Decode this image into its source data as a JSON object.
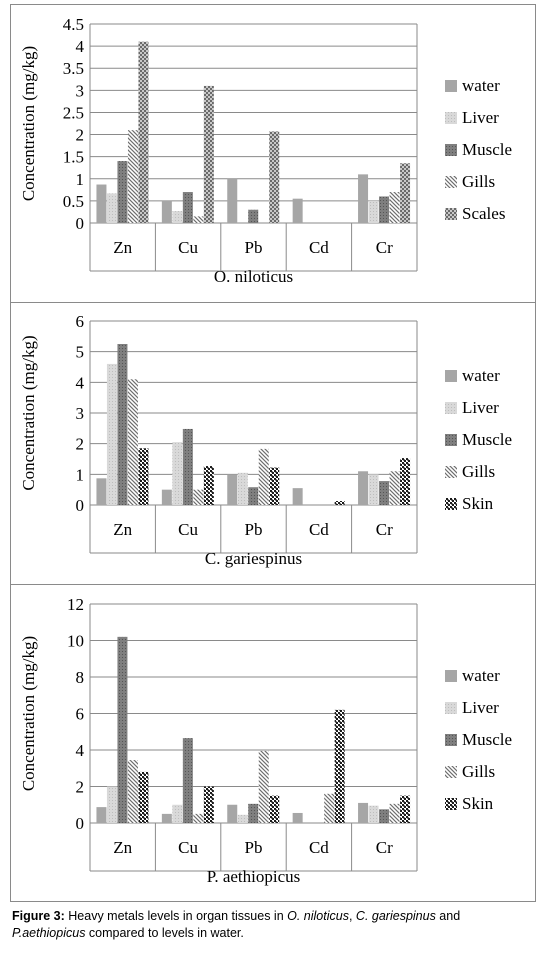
{
  "figure_caption": {
    "label": "Figure 3:",
    "text_1": " Heavy metals levels in organ tissues in ",
    "species_1": "O. niloticus",
    "text_2": ", ",
    "species_2": "C. gariespinus",
    "text_3": " and ",
    "species_3": "P.aethiopicus",
    "text_4": " compared to levels in water."
  },
  "colors": {
    "water": "#a6a6a6",
    "liver": "#d9d9d9",
    "muscle": "#7f7f7f",
    "gills": "#6e6e6e",
    "scales": "#8c8c8c",
    "skin": "#1a1a1a",
    "grid": "#8a8a8a"
  },
  "chart_data": [
    {
      "type": "bar",
      "title": "O. niloticus",
      "ylabel": "Concentration (mg/kg)",
      "categories": [
        "Zn",
        "Cu",
        "Pb",
        "Cd",
        "Cr"
      ],
      "ylim": [
        0,
        4.5
      ],
      "yticks": [
        0,
        0.5,
        1,
        1.5,
        2,
        2.5,
        3,
        3.5,
        4,
        4.5
      ],
      "ytick_labels": [
        "0",
        "0.5",
        "1",
        "1.5",
        "2",
        "2.5",
        "3",
        "3.5",
        "4",
        "4.5"
      ],
      "legend_position": "right",
      "series": [
        {
          "name": "water",
          "pattern": "solid-gray",
          "values": [
            0.87,
            0.5,
            1.0,
            0.55,
            1.1
          ]
        },
        {
          "name": "Liver",
          "pattern": "light-dotted",
          "values": [
            0.67,
            0.27,
            0,
            0,
            0.5
          ]
        },
        {
          "name": "Muscle",
          "pattern": "dark-dotted",
          "values": [
            1.4,
            0.7,
            0.3,
            0,
            0.6
          ]
        },
        {
          "name": "Gills",
          "pattern": "diagonal-hatch",
          "values": [
            2.1,
            0.15,
            0,
            0,
            0.7
          ]
        },
        {
          "name": "Scales",
          "pattern": "checker",
          "values": [
            4.1,
            3.1,
            2.07,
            0,
            1.35
          ]
        }
      ]
    },
    {
      "type": "bar",
      "title": "C. gariespinus",
      "ylabel": "Concentration (mg/kg)",
      "categories": [
        "Zn",
        "Cu",
        "Pb",
        "Cd",
        "Cr"
      ],
      "ylim": [
        0,
        6
      ],
      "yticks": [
        0,
        1,
        2,
        3,
        4,
        5,
        6
      ],
      "ytick_labels": [
        "0",
        "1",
        "2",
        "3",
        "4",
        "5",
        "6"
      ],
      "legend_position": "right",
      "series": [
        {
          "name": "water",
          "pattern": "solid-gray",
          "values": [
            0.87,
            0.5,
            1.0,
            0.55,
            1.1
          ]
        },
        {
          "name": "Liver",
          "pattern": "light-dotted",
          "values": [
            4.6,
            2.05,
            1.05,
            0,
            1.0
          ]
        },
        {
          "name": "Muscle",
          "pattern": "dark-dotted",
          "values": [
            5.25,
            2.48,
            0.58,
            0,
            0.78
          ]
        },
        {
          "name": "Gills",
          "pattern": "diagonal-hatch",
          "values": [
            4.1,
            0.5,
            1.83,
            0,
            1.1
          ]
        },
        {
          "name": "Skin",
          "pattern": "black-checker",
          "values": [
            1.85,
            1.27,
            1.22,
            0.13,
            1.53
          ]
        }
      ]
    },
    {
      "type": "bar",
      "title": "P. aethiopicus",
      "ylabel": "Concentration (mg/kg)",
      "categories": [
        "Zn",
        "Cu",
        "Pb",
        "Cd",
        "Cr"
      ],
      "ylim": [
        0,
        12
      ],
      "yticks": [
        0,
        2,
        4,
        6,
        8,
        10,
        12
      ],
      "ytick_labels": [
        "0",
        "2",
        "4",
        "6",
        "8",
        "10",
        "12"
      ],
      "legend_position": "right",
      "series": [
        {
          "name": "water",
          "pattern": "solid-gray",
          "values": [
            0.87,
            0.5,
            1.0,
            0.55,
            1.1
          ]
        },
        {
          "name": "Liver",
          "pattern": "light-dotted",
          "values": [
            2.0,
            1.0,
            0.45,
            0,
            0.95
          ]
        },
        {
          "name": "Muscle",
          "pattern": "dark-dotted",
          "values": [
            10.2,
            4.65,
            1.05,
            0,
            0.75
          ]
        },
        {
          "name": "Gills",
          "pattern": "diagonal-hatch",
          "values": [
            3.45,
            0.5,
            3.95,
            1.6,
            1.05
          ]
        },
        {
          "name": "Skin",
          "pattern": "black-checker",
          "values": [
            2.8,
            2.0,
            1.5,
            6.2,
            1.5
          ]
        }
      ]
    }
  ]
}
